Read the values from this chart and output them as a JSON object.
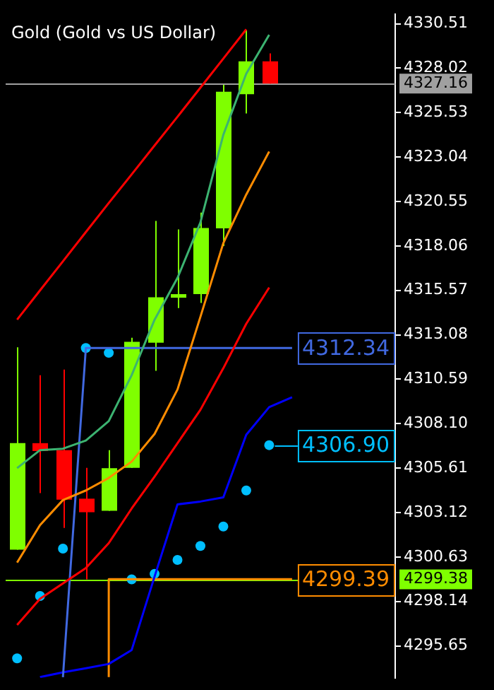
{
  "chart_data": {
    "type": "candlestick",
    "title": "Gold (Gold vs US Dollar)",
    "categories": [
      null,
      null,
      null,
      null,
      null,
      null,
      null,
      null,
      null,
      null,
      null,
      null,
      null,
      null,
      null,
      null,
      null
    ],
    "ohlc": [
      [
        4301.04,
        4312.38,
        4301.04,
        4307.01
      ],
      [
        4307.01,
        4310.82,
        4304.21,
        4306.57
      ],
      [
        4306.62,
        4311.13,
        4302.26,
        4303.84
      ],
      [
        4303.9,
        4305.63,
        4299.38,
        4303.14
      ],
      [
        4303.22,
        4306.62,
        4303.22,
        4305.61
      ],
      [
        4305.63,
        4312.92,
        4305.63,
        4312.69
      ],
      [
        4312.64,
        4319.46,
        4311.06,
        4315.18
      ],
      [
        4315.16,
        4318.99,
        4314.58,
        4315.36
      ],
      [
        4315.36,
        4319.93,
        4314.87,
        4319.07
      ],
      [
        4319.05,
        4327.09,
        4318.06,
        4326.7
      ],
      [
        4326.56,
        4330.14,
        4325.48,
        4328.41
      ],
      [
        4328.41,
        4328.85,
        4327.16,
        4327.16
      ],
      null,
      null,
      null,
      null,
      null
    ],
    "colors": [
      "#7fff00",
      "#ff0000",
      "#ff0000",
      "#ff0000",
      "#7fff00",
      "#7fff00",
      "#7fff00",
      "#7fff00",
      "#7fff00",
      "#7fff00",
      "#7fff00",
      "#ff0000",
      null,
      null,
      null,
      null,
      null
    ],
    "series": [
      {
        "type": "line",
        "color": "#ff0000",
        "values": [
          4313.93,
          4315.57,
          4317.2,
          4318.84,
          4320.47,
          4322.07,
          4323.69,
          4325.3,
          4326.93,
          4328.56,
          4330.2,
          null,
          null,
          null,
          null,
          null,
          null
        ]
      },
      {
        "type": "line",
        "color": "#3cb371",
        "values": [
          4305.61,
          4306.62,
          4306.7,
          4307.16,
          4308.25,
          4310.82,
          4313.93,
          4316.27,
          4319.38,
          4324.29,
          4327.71,
          4329.89,
          null,
          null,
          null,
          null,
          null
        ]
      },
      {
        "type": "line",
        "color": "#ff8c00",
        "values": [
          4300.32,
          4302.42,
          4303.82,
          4304.36,
          4305.06,
          4305.98,
          4307.53,
          4310.02,
          4314.09,
          4318.22,
          4320.94,
          4323.35,
          null,
          null,
          null,
          null,
          null
        ]
      },
      {
        "type": "line",
        "color": "#ff0000",
        "values": [
          4296.82,
          4298.29,
          4299.15,
          4300.01,
          4301.41,
          4303.35,
          4305.14,
          4307.01,
          4308.88,
          4311.21,
          4313.7,
          4315.73,
          null,
          null,
          null,
          null,
          null
        ]
      },
      {
        "type": "line",
        "color": "#4169e1",
        "values": [
          null,
          null,
          4293.9,
          4312.34,
          4312.34,
          4312.34,
          4312.34,
          4312.34,
          4312.34,
          4312.34,
          4312.34,
          4312.34,
          4312.34,
          null,
          null,
          null,
          null
        ],
        "value_labels": [
          null,
          null,
          null,
          null,
          null,
          null,
          null,
          null,
          null,
          null,
          null,
          null,
          "4312.34",
          null,
          null,
          null,
          null
        ]
      },
      {
        "type": "line",
        "color": "#0000ff",
        "values": [
          null,
          4293.9,
          4294.17,
          4294.4,
          4294.64,
          4295.42,
          4299.54,
          4303.58,
          4303.74,
          4303.97,
          4307.48,
          4309.03,
          4309.58,
          null,
          null,
          null,
          null
        ]
      },
      {
        "type": "step",
        "color": "#ff8c00",
        "values": [
          null,
          null,
          null,
          null,
          4293.9,
          4299.39,
          4299.39,
          4299.39,
          4299.39,
          4299.39,
          4299.39,
          4299.39,
          4299.39,
          null,
          null,
          null,
          null
        ],
        "value_labels": [
          null,
          null,
          null,
          null,
          null,
          null,
          null,
          null,
          null,
          null,
          null,
          null,
          "4299.39",
          null,
          null,
          null,
          null
        ]
      },
      {
        "type": "scatter",
        "color": "#00bfff",
        "marker": "circle",
        "values": [
          4294.95,
          4298.45,
          4301.1,
          4312.34,
          4312.07,
          4299.38,
          4299.69,
          4300.47,
          4301.25,
          4302.34,
          4304.36,
          4306.9,
          null,
          null,
          null,
          null,
          null
        ],
        "value_labels": [
          null,
          null,
          null,
          null,
          null,
          null,
          null,
          null,
          null,
          null,
          null,
          "4306.90",
          null,
          null,
          null,
          null,
          null
        ]
      }
    ],
    "ylim": [
      4293.86,
      4331.05
    ],
    "yticks": [
      4330.51,
      4328.02,
      4325.53,
      4323.04,
      4320.55,
      4318.06,
      4315.57,
      4313.08,
      4310.59,
      {
        "value": 4308.1,
        "label": "4308.10"
      },
      4305.61,
      4303.12,
      4300.63,
      4298.14,
      4295.65
    ],
    "ref_lines": [
      {
        "axis": "y",
        "value": 4327.16,
        "label": "4327.16",
        "color": "#a0a0a0"
      },
      {
        "axis": "y",
        "value": 4299.38,
        "label": "4299.38",
        "color": "#7fff00"
      }
    ],
    "legend": false,
    "grid": false,
    "tick_labels": "y"
  }
}
